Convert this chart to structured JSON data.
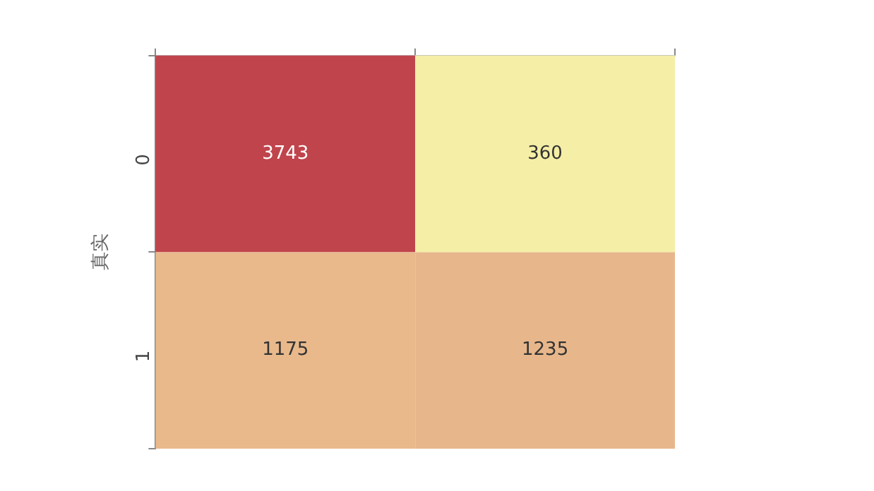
{
  "chart_data": {
    "type": "heatmap",
    "ylabel": "真实",
    "categories": [
      null,
      null
    ],
    "y_categories": [
      "0",
      "1"
    ],
    "cells": [
      [
        3743,
        360
      ],
      [
        1175,
        1235
      ]
    ],
    "colors": [
      [
        "#c0444c",
        "#f5eea6"
      ],
      [
        "#e9b98c",
        "#e7b78b"
      ]
    ],
    "data_labels": true
  }
}
